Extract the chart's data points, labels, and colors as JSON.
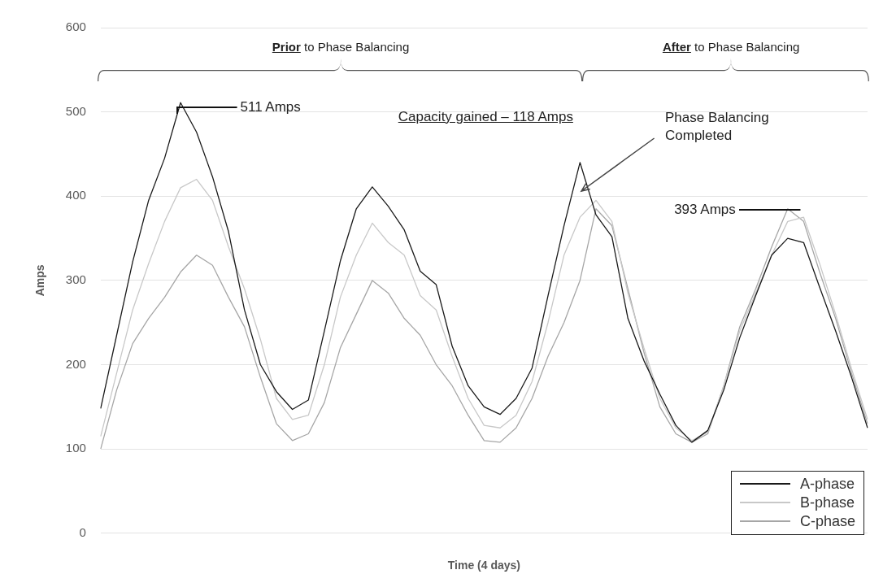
{
  "chart_data": {
    "type": "line",
    "xlabel": "Time (4 days)",
    "ylabel": "Amps",
    "categories": [
      null,
      null,
      null,
      null,
      null,
      null,
      null,
      null,
      null,
      null,
      null,
      null,
      null,
      null,
      null,
      null,
      null,
      null,
      null,
      null,
      null,
      null,
      null,
      null,
      null,
      null,
      null,
      null,
      null,
      null,
      null,
      null,
      null,
      null,
      null,
      null,
      null,
      null,
      null,
      null,
      null,
      null,
      null,
      null,
      null,
      null,
      null,
      null,
      null
    ],
    "series": [
      {
        "name": "A-phase",
        "color": "#1a1a1a",
        "values": [
          148,
          235,
          322,
          395,
          445,
          511,
          476,
          423,
          358,
          265,
          200,
          168,
          147,
          158,
          240,
          323,
          385,
          411,
          388,
          360,
          311,
          295,
          222,
          175,
          150,
          141,
          160,
          196,
          282,
          365,
          440,
          378,
          352,
          255,
          205,
          165,
          128,
          108,
          122,
          170,
          232,
          282,
          330,
          350,
          345,
          292,
          240,
          185,
          125
        ]
      },
      {
        "name": "B-phase",
        "color": "#c8c8c8",
        "values": [
          115,
          190,
          265,
          320,
          370,
          410,
          420,
          395,
          340,
          290,
          230,
          160,
          135,
          140,
          200,
          280,
          330,
          368,
          345,
          330,
          282,
          265,
          210,
          160,
          128,
          125,
          140,
          180,
          250,
          330,
          375,
          395,
          370,
          285,
          220,
          160,
          125,
          110,
          120,
          175,
          240,
          285,
          330,
          370,
          375,
          320,
          260,
          195,
          135
        ]
      },
      {
        "name": "C-phase",
        "color": "#a6a6a6",
        "values": [
          100,
          170,
          225,
          255,
          280,
          310,
          330,
          318,
          280,
          245,
          185,
          130,
          110,
          118,
          155,
          220,
          260,
          300,
          285,
          255,
          235,
          200,
          175,
          140,
          110,
          108,
          125,
          160,
          210,
          250,
          300,
          385,
          365,
          290,
          215,
          150,
          118,
          108,
          118,
          175,
          245,
          290,
          340,
          385,
          370,
          310,
          255,
          190,
          130
        ]
      }
    ],
    "ylim": [
      0,
      600
    ],
    "yticks": [
      0,
      100,
      200,
      300,
      400,
      500,
      600
    ],
    "grid": "y",
    "legend": "bottom right",
    "annotations": [
      "Prior to Phase Balancing",
      "After to Phase Balancing",
      "511 Amps",
      "Capacity gained – 118 Amps",
      "Phase Balancing Completed",
      "393 Amps"
    ]
  }
}
